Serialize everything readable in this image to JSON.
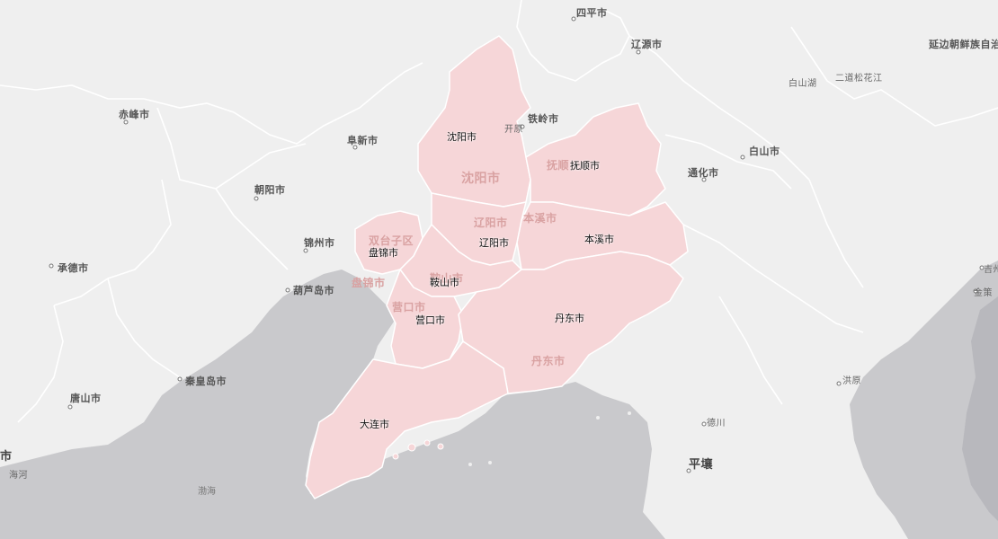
{
  "colors": {
    "land": "#efefef",
    "sea": "#c9c9cc",
    "region_fill": "#f6d6d8",
    "region_border": "#ffffff",
    "boundary": "#ffffff"
  },
  "map": {
    "region_cities": [
      {
        "name": "沈阳市"
      },
      {
        "name": "抚顺市"
      },
      {
        "name": "盘锦市"
      },
      {
        "name": "辽阳市"
      },
      {
        "name": "本溪市"
      },
      {
        "name": "鞍山市"
      },
      {
        "name": "营口市"
      },
      {
        "name": "丹东市"
      },
      {
        "name": "大连市"
      }
    ],
    "faded_labels": [
      "沈阳市",
      "抚顺",
      "辽阳市",
      "本溪市",
      "双台子区",
      "盘锦市",
      "营口市",
      "丹东市",
      "鞍山市"
    ],
    "base_labels": {
      "siping": "四平市",
      "liaoyuan": "辽源市",
      "yanbian": "延边朝鲜族自治",
      "baishanhu": "白山湖",
      "erdao": "二道松花江",
      "baishan": "白山市",
      "tonghua": "通化市",
      "tieling": "铁岭市",
      "kaiyuan": "开原",
      "chifeng": "赤峰市",
      "fuxin": "阜新市",
      "chaoyang": "朝阳市",
      "jinzhou": "锦州市",
      "chengde": "承德市",
      "huludao": "葫芦岛市",
      "qinhuangdao": "秦皇岛市",
      "tangshan": "唐山市",
      "shi_left": "市",
      "haihe": "海河",
      "bohai": "渤海",
      "deqin": "德川",
      "pyongyang": "平壤",
      "hongyuan": "洪原",
      "jizhou": "吉州",
      "jince": "金策"
    }
  }
}
